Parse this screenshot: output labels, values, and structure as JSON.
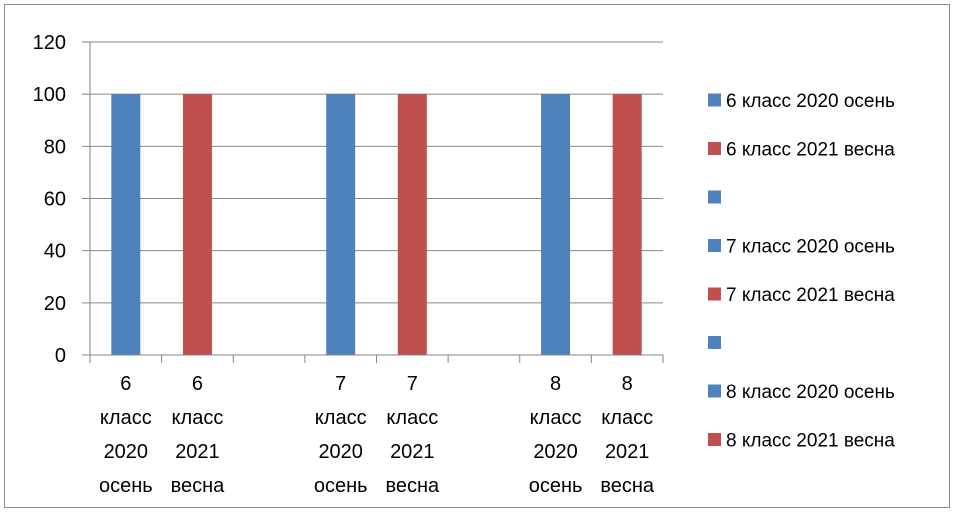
{
  "chart_data": {
    "type": "bar",
    "title": "",
    "xlabel": "",
    "ylabel": "",
    "ylim": [
      0,
      120
    ],
    "yticks": [
      "0",
      "20",
      "40",
      "60",
      "80",
      "100",
      "120"
    ],
    "grid": true,
    "legend_position": "right",
    "categories": [
      [
        "6",
        "класс",
        "2020",
        "осень"
      ],
      [
        "6",
        "класс",
        "2021",
        "весна"
      ],
      [],
      [
        "7",
        "класс",
        "2020",
        "осень"
      ],
      [
        "7",
        "класс",
        "2021",
        "весна"
      ],
      [],
      [
        "8",
        "класс",
        "2020",
        "осень"
      ],
      [
        "8",
        "класс",
        "2021",
        "весна"
      ]
    ],
    "values": [
      100,
      100,
      null,
      100,
      100,
      null,
      100,
      100
    ],
    "bar_colors": [
      "#4f81bd",
      "#c0504d",
      "#4f81bd",
      "#4f81bd",
      "#c0504d",
      "#4f81bd",
      "#4f81bd",
      "#c0504d"
    ],
    "legend": [
      {
        "label": "6 класс 2020 осень",
        "color": "#4f81bd"
      },
      {
        "label": "6 класс 2021 весна",
        "color": "#c0504d"
      },
      {
        "label": "",
        "color": "#4f81bd"
      },
      {
        "label": "7 класс 2020 осень",
        "color": "#4f81bd"
      },
      {
        "label": "7 класс 2021 весна",
        "color": "#c0504d"
      },
      {
        "label": "",
        "color": "#4f81bd"
      },
      {
        "label": "8 класс 2020 осень",
        "color": "#4f81bd"
      },
      {
        "label": "8 класс 2021 весна",
        "color": "#c0504d"
      }
    ]
  }
}
